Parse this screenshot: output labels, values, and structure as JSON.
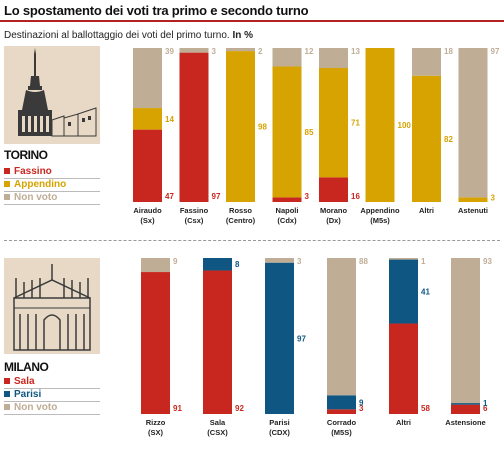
{
  "title": "Lo spostamento dei voti tra primo e secondo turno",
  "subtitle_main": "Destinazioni al ballottaggio dei voti del primo turno.",
  "subtitle_unit": "In %",
  "colors": {
    "fassino": "#c8271f",
    "appendino": "#d6a300",
    "nonvoto": "#bfad96",
    "sala": "#c8271f",
    "parisi": "#0f5782"
  },
  "torino": {
    "city": "TORINO",
    "legend": [
      {
        "label": "Fassino",
        "color": "#c8271f"
      },
      {
        "label": "Appendino",
        "color": "#d6a300"
      },
      {
        "label": "Non voto",
        "color": "#bfad96"
      }
    ]
  },
  "milano": {
    "city": "MILANO",
    "legend": [
      {
        "label": "Sala",
        "color": "#c8271f"
      },
      {
        "label": "Parisi",
        "color": "#0f5782"
      },
      {
        "label": "Non voto",
        "color": "#bfad96"
      }
    ]
  },
  "chart_data": [
    {
      "type": "bar",
      "stacked": true,
      "categories": [
        [
          "Airaudo",
          "(Sx)"
        ],
        [
          "Fassino",
          "(Csx)"
        ],
        [
          "Rosso",
          "(Centro)"
        ],
        [
          "Napoli",
          "(Cdx)"
        ],
        [
          "Morano",
          "(Dx)"
        ],
        [
          "Appendino",
          "(M5s)"
        ],
        [
          "Altri"
        ],
        [
          "Astenuti"
        ]
      ],
      "series": [
        {
          "name": "Fassino",
          "color": "#c8271f",
          "values": [
            47,
            97,
            0,
            3,
            16,
            0,
            0,
            0
          ],
          "labels": [
            "47",
            "97",
            "",
            "3",
            "16",
            "",
            "",
            ""
          ]
        },
        {
          "name": "Appendino",
          "color": "#d6a300",
          "values": [
            14,
            0,
            98,
            85,
            71,
            100,
            82,
            3
          ],
          "labels": [
            "14",
            "",
            "98",
            "85",
            "71",
            "100",
            "82",
            "3"
          ]
        },
        {
          "name": "Non voto",
          "color": "#bfad96",
          "values": [
            39,
            3,
            2,
            12,
            13,
            0,
            18,
            97
          ],
          "labels": [
            "39",
            "3",
            "2",
            "12",
            "13",
            "",
            "18",
            "97"
          ]
        }
      ],
      "ylim": [
        0,
        100
      ]
    },
    {
      "type": "bar",
      "stacked": true,
      "categories": [
        [
          "Rizzo",
          "(SX)"
        ],
        [
          "Sala",
          "(CSX)"
        ],
        [
          "Parisi",
          "(CDX)"
        ],
        [
          "Corrado",
          "(M5S)"
        ],
        [
          "Altri"
        ],
        [
          "Astensione"
        ]
      ],
      "series": [
        {
          "name": "Sala",
          "color": "#c8271f",
          "values": [
            91,
            92,
            0,
            3,
            58,
            6
          ],
          "labels": [
            "91",
            "92",
            "",
            "3",
            "58",
            "6"
          ]
        },
        {
          "name": "Parisi",
          "color": "#0f5782",
          "values": [
            0,
            8,
            97,
            9,
            41,
            1
          ],
          "labels": [
            "",
            "8",
            "97",
            "9",
            "41",
            "1"
          ]
        },
        {
          "name": "Non voto",
          "color": "#bfad96",
          "values": [
            9,
            0,
            3,
            88,
            1,
            93
          ],
          "labels": [
            "9",
            "",
            "3",
            "88",
            "1",
            "93"
          ]
        }
      ],
      "ylim": [
        0,
        100
      ]
    }
  ]
}
